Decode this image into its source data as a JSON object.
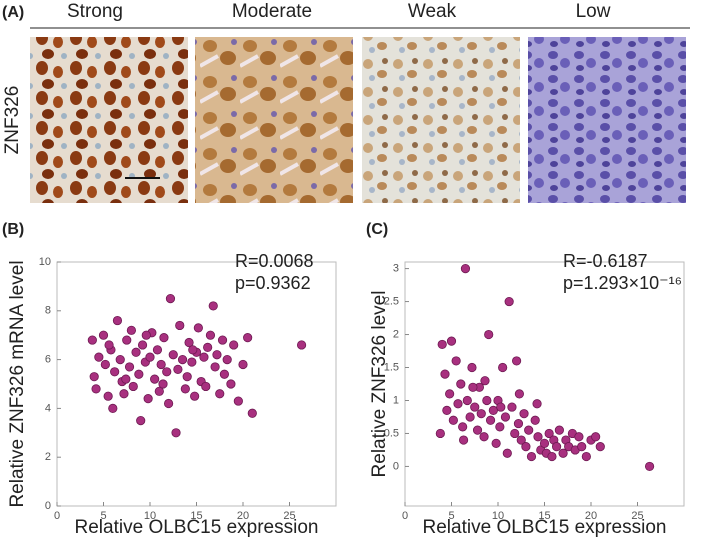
{
  "panel_a": {
    "label": "(A)",
    "row_label": "ZNF326",
    "columns": [
      "Strong",
      "Moderate",
      "Weak",
      "Low"
    ]
  },
  "chart_data": [
    {
      "type": "scatter",
      "panel_label": "(B)",
      "xlabel": "Relative OLBC15 expression",
      "ylabel": "Relative ZNF326 mRNA level",
      "annotations": [
        "R=0.0068",
        "p=0.9362"
      ],
      "color": "#a8307f",
      "x": [
        4,
        4.5,
        4.2,
        5,
        5.2,
        5.5,
        5.8,
        6,
        6.2,
        6.5,
        6.8,
        7,
        7.2,
        7.5,
        7.8,
        8,
        8.2,
        8.5,
        8.8,
        9,
        9.2,
        9.5,
        9.8,
        10,
        10.2,
        10.5,
        10.8,
        11,
        11.2,
        11.5,
        11.8,
        12,
        12.2,
        12.5,
        12.8,
        13,
        13.2,
        13.5,
        13.8,
        14,
        14.2,
        14.5,
        14.8,
        15,
        15.2,
        15.5,
        15.8,
        16,
        16.2,
        16.5,
        16.8,
        17,
        17.2,
        17.5,
        17.8,
        18,
        18.3,
        18.7,
        19,
        19.5,
        20,
        20.5,
        21,
        26.3,
        3.8,
        5.6,
        7.4,
        9.6,
        11.4,
        14.6
      ],
      "values": [
        5.3,
        6.1,
        4.8,
        7.0,
        5.8,
        4.5,
        6.4,
        4.0,
        5.5,
        7.6,
        6.0,
        5.1,
        4.6,
        6.8,
        5.7,
        7.2,
        4.9,
        6.3,
        5.4,
        3.5,
        6.6,
        5.9,
        4.4,
        6.1,
        7.1,
        5.2,
        6.4,
        4.7,
        5.8,
        6.9,
        5.5,
        4.2,
        8.5,
        6.2,
        3.0,
        5.6,
        7.4,
        6.0,
        4.8,
        5.3,
        6.7,
        5.9,
        4.5,
        6.3,
        7.3,
        5.1,
        6.1,
        4.9,
        6.5,
        7.0,
        8.2,
        5.7,
        6.2,
        4.6,
        6.8,
        5.4,
        6.0,
        5.0,
        6.6,
        4.3,
        5.8,
        6.9,
        3.8,
        6.6,
        6.8,
        6.6,
        5.2,
        7.0,
        5.0,
        6.4
      ],
      "xlim": [
        0,
        30
      ],
      "ylim": [
        0,
        10
      ],
      "xticks": [
        0,
        5,
        10,
        15,
        20,
        25
      ],
      "yticks": [
        0,
        2,
        4,
        6,
        8,
        10
      ]
    },
    {
      "type": "scatter",
      "panel_label": "(C)",
      "xlabel": "Relative OLBC15 expression",
      "ylabel": "Relative ZNF326 level",
      "annotations": [
        "R=-0.6187",
        "p=1.293×10⁻¹⁶"
      ],
      "color": "#a8307f",
      "x": [
        4,
        4.3,
        4.5,
        4.8,
        5,
        5.2,
        5.5,
        5.7,
        6,
        6.2,
        6.5,
        6.7,
        7,
        7.2,
        7.5,
        7.8,
        8,
        8.2,
        8.5,
        8.8,
        9,
        9.2,
        9.5,
        9.8,
        10,
        10.2,
        10.5,
        10.8,
        11,
        11.2,
        11.5,
        11.8,
        12,
        12.2,
        12.5,
        12.8,
        13,
        13.3,
        13.6,
        14,
        14.3,
        14.6,
        15,
        15.2,
        15.5,
        15.8,
        16,
        16.3,
        16.6,
        17,
        17.3,
        17.6,
        18,
        18.3,
        18.7,
        19,
        19.5,
        20,
        20.5,
        21,
        26.3,
        3.8,
        6.3,
        8.6,
        7.3,
        10.3,
        12.3,
        14.2
      ],
      "values": [
        1.85,
        1.4,
        0.85,
        1.1,
        1.9,
        0.7,
        1.6,
        0.95,
        1.25,
        0.6,
        3.0,
        1.0,
        0.75,
        1.5,
        0.9,
        0.55,
        1.2,
        0.8,
        0.45,
        1.0,
        2.0,
        0.7,
        0.85,
        0.35,
        1.0,
        0.6,
        1.5,
        0.75,
        0.2,
        2.5,
        0.9,
        0.5,
        1.6,
        0.65,
        0.4,
        0.8,
        0.3,
        0.55,
        0.15,
        0.7,
        0.45,
        0.25,
        0.35,
        0.2,
        0.5,
        0.15,
        0.4,
        0.3,
        0.55,
        0.2,
        0.4,
        0.3,
        0.5,
        0.25,
        0.45,
        0.3,
        0.15,
        0.4,
        0.45,
        0.3,
        0.0,
        0.5,
        0.4,
        1.3,
        1.2,
        0.9,
        1.1,
        0.95
      ],
      "xlim": [
        0,
        30
      ],
      "ylim": [
        -0.6,
        3.1
      ],
      "xticks": [
        0,
        5,
        10,
        15,
        20,
        25
      ],
      "yticks": [
        0,
        0.5,
        1,
        1.5,
        2,
        2.5,
        3
      ]
    }
  ]
}
